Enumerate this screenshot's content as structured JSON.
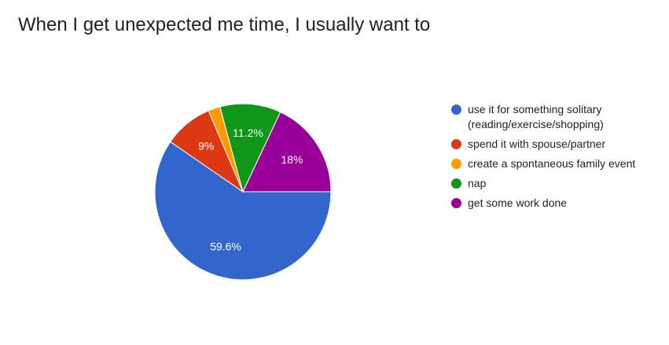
{
  "chart_data": {
    "type": "pie",
    "title": "When I get unexpected me time, I usually want to",
    "categories": [
      "use it for something solitary (reading/exercise/shopping)",
      "spend it with spouse/partner",
      "create a spontaneous family event",
      "nap",
      "get some work done"
    ],
    "values": [
      59.6,
      9,
      2.2,
      11.2,
      18
    ],
    "value_labels": [
      "59.6%",
      "9%",
      null,
      "11.2%",
      "18%"
    ],
    "colors": [
      "#3366cc",
      "#dc3912",
      "#ff9900",
      "#109618",
      "#990099"
    ]
  }
}
